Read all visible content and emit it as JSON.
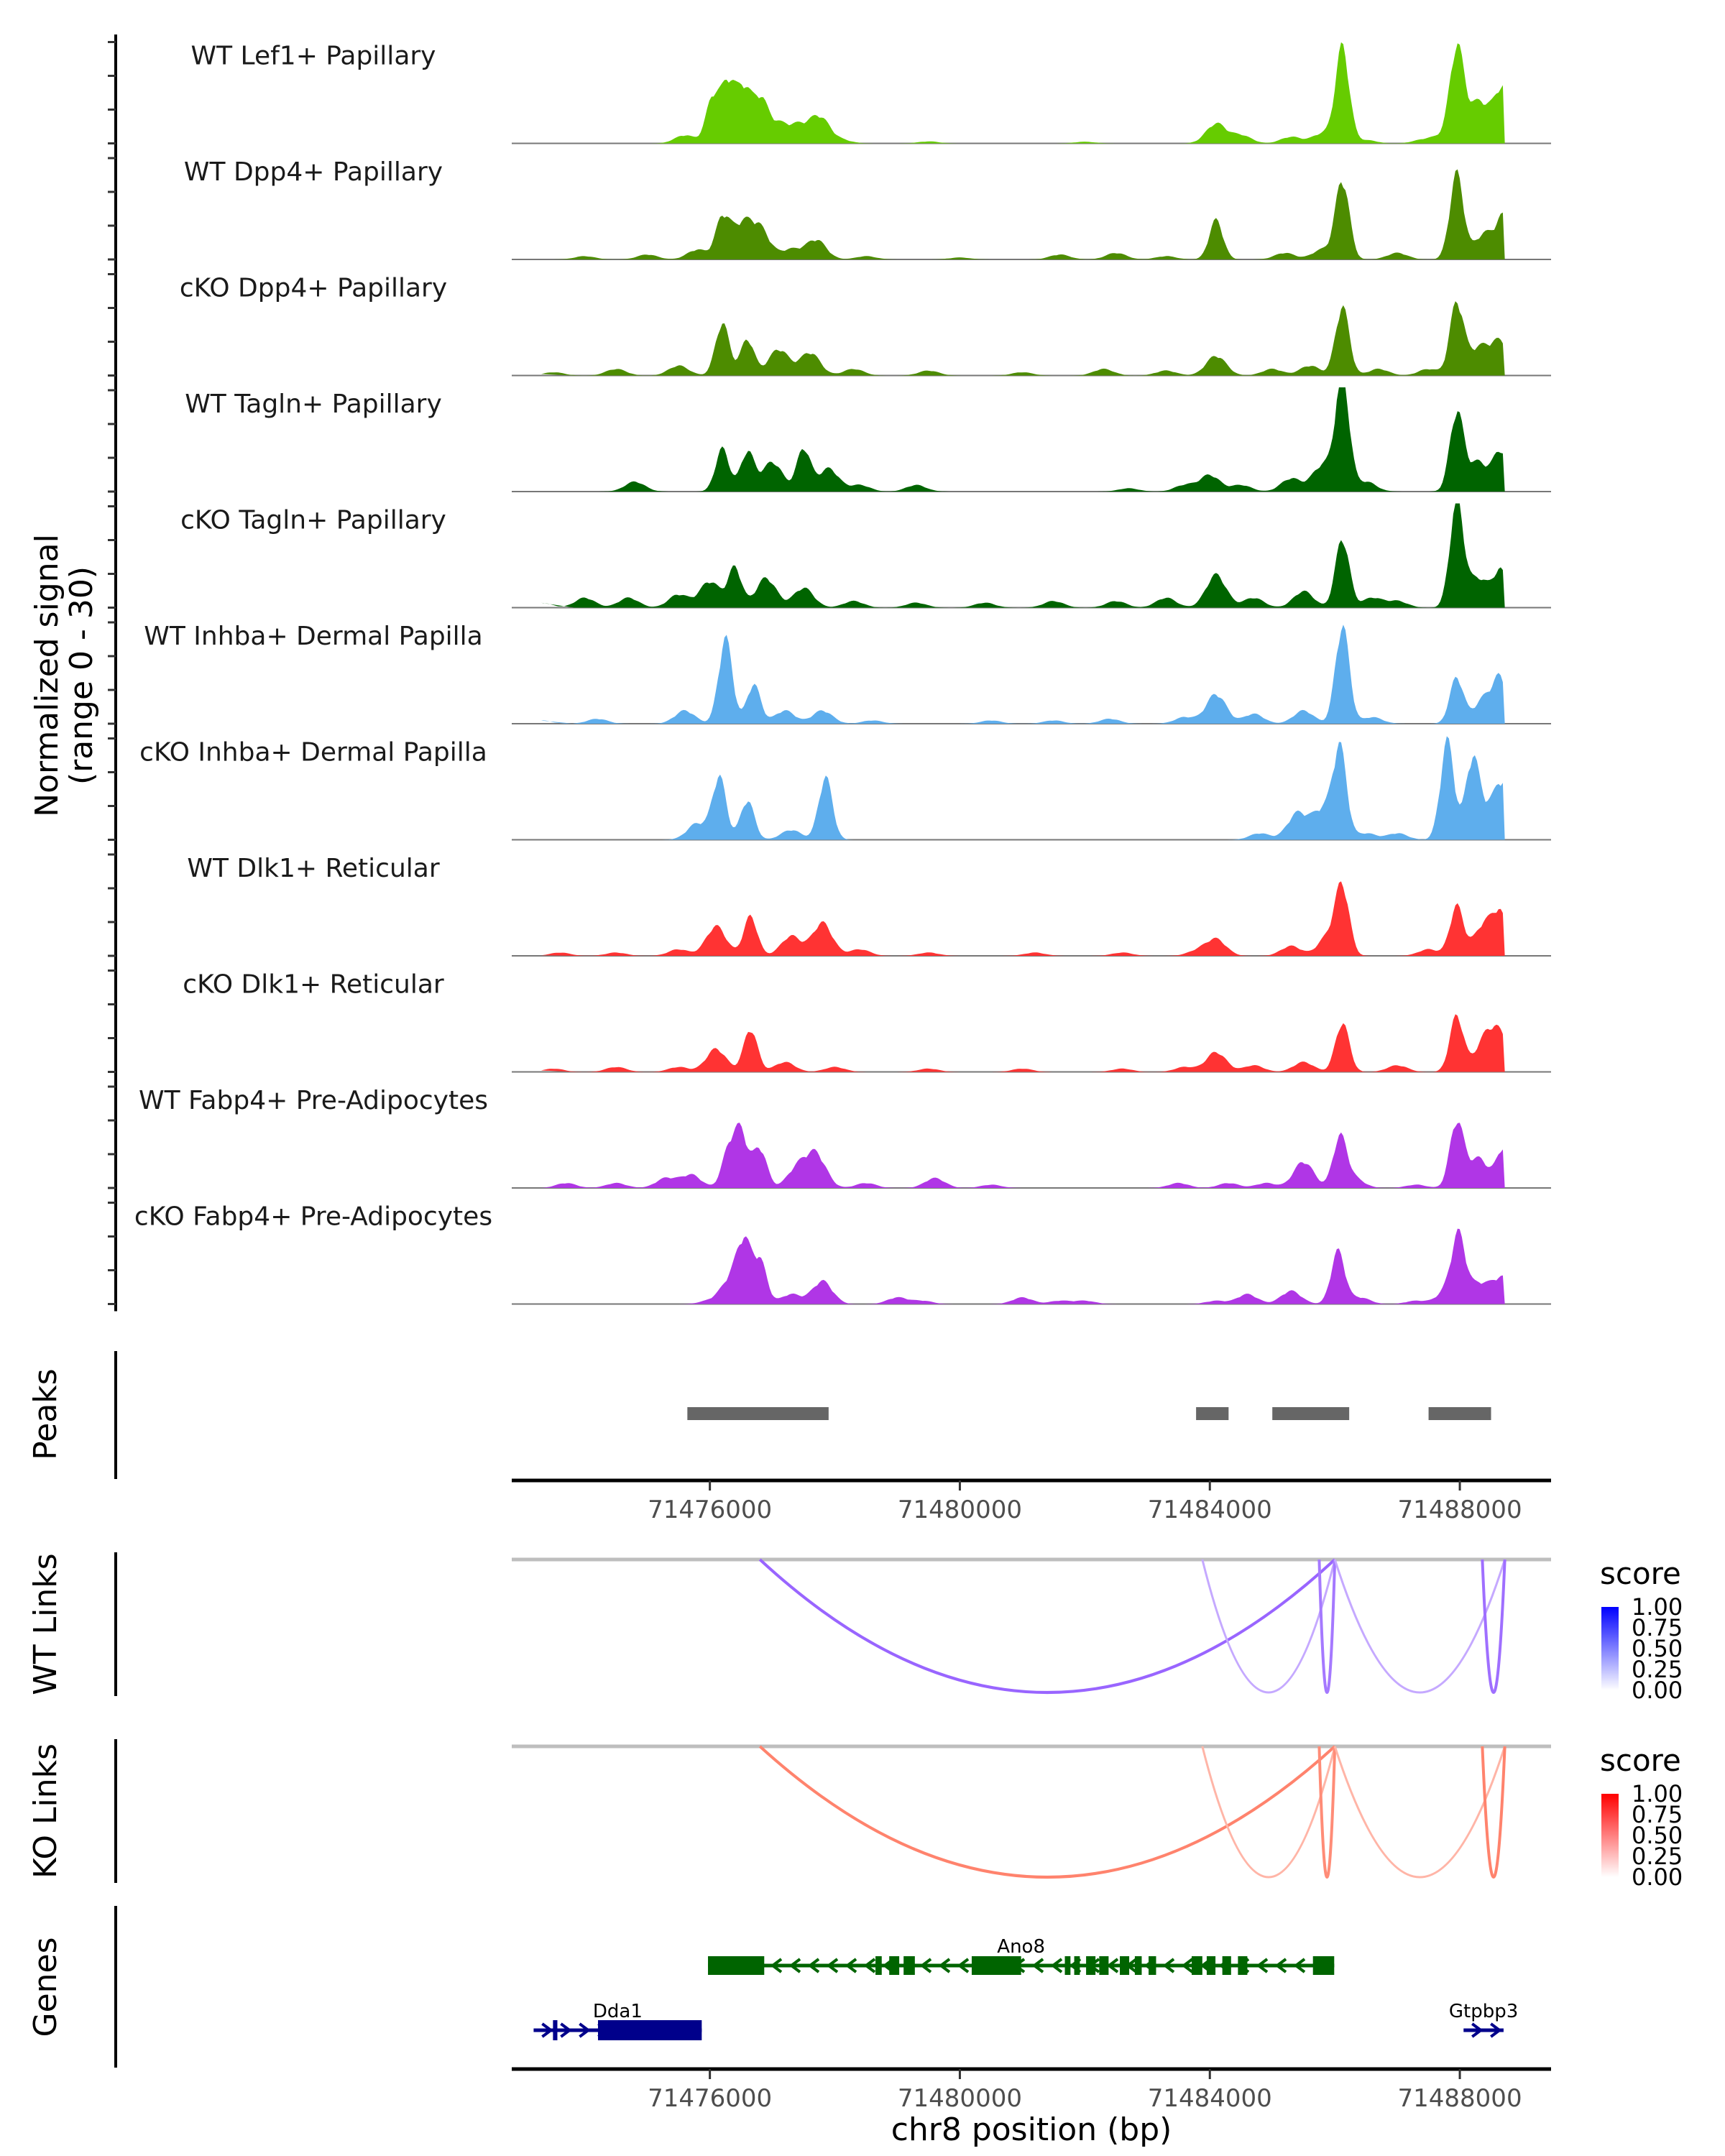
{
  "chart_data": {
    "type": "area",
    "title": "",
    "xlabel": "chr8 position (bp)",
    "ylabel": "Normalized signal\n(range 0 - 30)",
    "ylabel_lines": [
      "Normalized signal",
      "(range 0 - 30)"
    ],
    "xlim": [
      71472830,
      71489460
    ],
    "ylim": [
      0,
      30
    ],
    "x_ticks": [
      71476000,
      71480000,
      71484000,
      71488000
    ],
    "x_tick_labels": [
      "71476000",
      "71480000",
      "71484000",
      "71488000"
    ],
    "coverage_tracks": [
      {
        "name": "WT Lef1+ Papillary",
        "color": "#66cc00",
        "peaks": [
          [
            71475600,
            2.5
          ],
          [
            71476050,
            14
          ],
          [
            71476300,
            18
          ],
          [
            71476550,
            16
          ],
          [
            71476800,
            12
          ],
          [
            71477050,
            6
          ],
          [
            71477400,
            5
          ],
          [
            71477750,
            8
          ],
          [
            71478100,
            1
          ],
          [
            71479500,
            0.6
          ],
          [
            71482000,
            0.5
          ],
          [
            71484100,
            6
          ],
          [
            71484500,
            2.5
          ],
          [
            71485300,
            2
          ],
          [
            71485800,
            3
          ],
          [
            71486120,
            29
          ],
          [
            71486500,
            1
          ],
          [
            71487400,
            1
          ],
          [
            71487700,
            2
          ],
          [
            71487950,
            28
          ],
          [
            71488250,
            10
          ],
          [
            71488500,
            7
          ],
          [
            71488700,
            14
          ]
        ]
      },
      {
        "name": "WT Dpp4+ Papillary",
        "color": "#4d8c00",
        "peaks": [
          [
            71474000,
            1
          ],
          [
            71475000,
            1.5
          ],
          [
            71475800,
            3
          ],
          [
            71476200,
            12
          ],
          [
            71476500,
            10
          ],
          [
            71476800,
            9
          ],
          [
            71477300,
            3
          ],
          [
            71477700,
            6
          ],
          [
            71478500,
            1
          ],
          [
            71480000,
            0.6
          ],
          [
            71481600,
            1.5
          ],
          [
            71482500,
            2
          ],
          [
            71483300,
            1
          ],
          [
            71484100,
            12
          ],
          [
            71485200,
            2
          ],
          [
            71485800,
            3
          ],
          [
            71486120,
            24
          ],
          [
            71487000,
            2
          ],
          [
            71487950,
            26
          ],
          [
            71488400,
            8
          ],
          [
            71488700,
            12
          ]
        ]
      },
      {
        "name": "cKO Dpp4+ Papillary",
        "color": "#4d8c00",
        "peaks": [
          [
            71473500,
            1
          ],
          [
            71474500,
            2
          ],
          [
            71475500,
            3
          ],
          [
            71476200,
            16
          ],
          [
            71476600,
            11
          ],
          [
            71477100,
            8
          ],
          [
            71477600,
            7
          ],
          [
            71478300,
            2
          ],
          [
            71479500,
            1.5
          ],
          [
            71481000,
            1
          ],
          [
            71482300,
            2
          ],
          [
            71483300,
            1.5
          ],
          [
            71484100,
            6
          ],
          [
            71485000,
            2
          ],
          [
            71485600,
            3
          ],
          [
            71486120,
            21
          ],
          [
            71486700,
            2
          ],
          [
            71487500,
            2
          ],
          [
            71487950,
            22
          ],
          [
            71488300,
            8
          ],
          [
            71488650,
            10
          ]
        ]
      },
      {
        "name": "WT Tagln+ Papillary",
        "color": "#006400",
        "peaks": [
          [
            71474800,
            3
          ],
          [
            71476200,
            13
          ],
          [
            71476600,
            12
          ],
          [
            71477000,
            9
          ],
          [
            71477500,
            13
          ],
          [
            71477900,
            7
          ],
          [
            71478400,
            2
          ],
          [
            71479300,
            2
          ],
          [
            71482700,
            1
          ],
          [
            71483600,
            2
          ],
          [
            71484000,
            5
          ],
          [
            71484500,
            2
          ],
          [
            71485300,
            4
          ],
          [
            71485800,
            8
          ],
          [
            71486120,
            35
          ],
          [
            71486500,
            3
          ],
          [
            71487950,
            24
          ],
          [
            71488300,
            9
          ],
          [
            71488650,
            12
          ]
        ]
      },
      {
        "name": "cKO Tagln+ Papillary",
        "color": "#006400",
        "peaks": [
          [
            71473300,
            1.5
          ],
          [
            71474000,
            3
          ],
          [
            71474700,
            3
          ],
          [
            71475500,
            4
          ],
          [
            71476000,
            8
          ],
          [
            71476400,
            12
          ],
          [
            71476900,
            9
          ],
          [
            71477500,
            6
          ],
          [
            71478300,
            2
          ],
          [
            71479300,
            1.5
          ],
          [
            71480400,
            1.5
          ],
          [
            71481500,
            2
          ],
          [
            71482500,
            2
          ],
          [
            71483300,
            3
          ],
          [
            71484100,
            10
          ],
          [
            71484700,
            3
          ],
          [
            71485500,
            5
          ],
          [
            71486120,
            21
          ],
          [
            71486600,
            3
          ],
          [
            71487000,
            2
          ],
          [
            71487950,
            32
          ],
          [
            71488300,
            9
          ],
          [
            71488650,
            11
          ]
        ]
      },
      {
        "name": "WT Inhba+ Dermal Papilla",
        "color": "#5eaeed",
        "peaks": [
          [
            71473300,
            1
          ],
          [
            71474200,
            1.5
          ],
          [
            71475600,
            4
          ],
          [
            71476250,
            26
          ],
          [
            71476700,
            12
          ],
          [
            71477200,
            4
          ],
          [
            71477800,
            4
          ],
          [
            71478600,
            1
          ],
          [
            71480500,
            1
          ],
          [
            71481500,
            1
          ],
          [
            71482400,
            1.5
          ],
          [
            71483600,
            2
          ],
          [
            71484100,
            9
          ],
          [
            71484700,
            3
          ],
          [
            71485500,
            4
          ],
          [
            71486120,
            30
          ],
          [
            71486600,
            2
          ],
          [
            71487950,
            14
          ],
          [
            71488400,
            8
          ],
          [
            71488650,
            12
          ]
        ]
      },
      {
        "name": "cKO Inhba+ Dermal Papilla",
        "color": "#5eaeed",
        "peaks": [
          [
            71475800,
            5
          ],
          [
            71476150,
            19
          ],
          [
            71476600,
            12
          ],
          [
            71477300,
            3
          ],
          [
            71477850,
            19
          ],
          [
            71484800,
            2
          ],
          [
            71485400,
            8
          ],
          [
            71485800,
            9
          ],
          [
            71486080,
            27
          ],
          [
            71486500,
            2
          ],
          [
            71487000,
            2
          ],
          [
            71487800,
            30
          ],
          [
            71488200,
            24
          ],
          [
            71488500,
            10
          ],
          [
            71488700,
            13
          ]
        ]
      },
      {
        "name": "WT Dlk1+ Reticular",
        "color": "#ff3333",
        "peaks": [
          [
            71473600,
            1
          ],
          [
            71474500,
            1
          ],
          [
            71475500,
            2
          ],
          [
            71476100,
            9
          ],
          [
            71476650,
            12
          ],
          [
            71477300,
            6
          ],
          [
            71477800,
            10
          ],
          [
            71478400,
            2
          ],
          [
            71479500,
            1
          ],
          [
            71481200,
            1
          ],
          [
            71482600,
            1
          ],
          [
            71483800,
            1.5
          ],
          [
            71484100,
            5
          ],
          [
            71485300,
            3
          ],
          [
            71485900,
            6
          ],
          [
            71486120,
            20
          ],
          [
            71487500,
            2
          ],
          [
            71487950,
            15
          ],
          [
            71488400,
            10
          ],
          [
            71488650,
            11
          ]
        ]
      },
      {
        "name": "cKO Dlk1+ Reticular",
        "color": "#ff3333",
        "peaks": [
          [
            71473500,
            1
          ],
          [
            71474500,
            1.5
          ],
          [
            71475500,
            1.5
          ],
          [
            71476100,
            7
          ],
          [
            71476650,
            13
          ],
          [
            71477200,
            3
          ],
          [
            71478000,
            1.5
          ],
          [
            71479500,
            1
          ],
          [
            71481000,
            1
          ],
          [
            71482600,
            1
          ],
          [
            71483600,
            1.5
          ],
          [
            71484100,
            6
          ],
          [
            71484700,
            2
          ],
          [
            71485500,
            3
          ],
          [
            71486120,
            15
          ],
          [
            71487000,
            2
          ],
          [
            71487950,
            17
          ],
          [
            71488400,
            9
          ],
          [
            71488650,
            10
          ]
        ]
      },
      {
        "name": "WT Fabp4+ Pre-Adipocytes",
        "color": "#b036e6",
        "peaks": [
          [
            71473700,
            1.5
          ],
          [
            71474500,
            1.5
          ],
          [
            71475300,
            3
          ],
          [
            71475700,
            4
          ],
          [
            71476300,
            11
          ],
          [
            71476500,
            16
          ],
          [
            71476800,
            12
          ],
          [
            71477400,
            6
          ],
          [
            71477700,
            10
          ],
          [
            71478500,
            1.5
          ],
          [
            71479600,
            3
          ],
          [
            71480500,
            1
          ],
          [
            71483500,
            1.5
          ],
          [
            71484300,
            1.5
          ],
          [
            71484900,
            1.5
          ],
          [
            71485500,
            8
          ],
          [
            71486080,
            15
          ],
          [
            71486300,
            3
          ],
          [
            71487300,
            1
          ],
          [
            71487950,
            20
          ],
          [
            71488300,
            9
          ],
          [
            71488700,
            12
          ]
        ]
      },
      {
        "name": "cKO Fabp4+ Pre-Adipocytes",
        "color": "#b036e6",
        "peaks": [
          [
            71476000,
            1
          ],
          [
            71476350,
            8
          ],
          [
            71476550,
            16
          ],
          [
            71476800,
            13
          ],
          [
            71477300,
            3
          ],
          [
            71477800,
            7
          ],
          [
            71479000,
            2
          ],
          [
            71479400,
            1
          ],
          [
            71481000,
            2
          ],
          [
            71481600,
            1
          ],
          [
            71482000,
            1
          ],
          [
            71484100,
            1
          ],
          [
            71484600,
            3
          ],
          [
            71485300,
            4
          ],
          [
            71486050,
            16
          ],
          [
            71486400,
            2
          ],
          [
            71487300,
            1
          ],
          [
            71487800,
            4
          ],
          [
            71487980,
            19
          ],
          [
            71488300,
            6
          ],
          [
            71488680,
            8
          ]
        ]
      }
    ],
    "peaks_track": {
      "label": "Peaks",
      "color": "#666666",
      "regions": [
        [
          71475640,
          71477900
        ],
        [
          71483780,
          71484300
        ],
        [
          71485000,
          71486230
        ],
        [
          71487500,
          71488500
        ]
      ]
    },
    "links": [
      {
        "label": "WT Links",
        "legend_title": "score",
        "high_color": "#0000ff",
        "low_color": "#ffffff",
        "legend_ticks": [
          "1.00",
          "0.75",
          "0.50",
          "0.25",
          "0.00"
        ],
        "arcs": [
          {
            "start": 71476800,
            "end": 71486000,
            "score": 0.55
          },
          {
            "start": 71483880,
            "end": 71486000,
            "score": 0.2
          },
          {
            "start": 71485750,
            "end": 71486000,
            "score": 0.45
          },
          {
            "start": 71486000,
            "end": 71488720,
            "score": 0.2
          },
          {
            "start": 71488360,
            "end": 71488720,
            "score": 0.5
          }
        ]
      },
      {
        "label": "KO Links",
        "legend_title": "score",
        "high_color": "#ff0000",
        "low_color": "#ffffff",
        "legend_ticks": [
          "1.00",
          "0.75",
          "0.50",
          "0.25",
          "0.00"
        ],
        "arcs": [
          {
            "start": 71476800,
            "end": 71486000,
            "score": 0.5
          },
          {
            "start": 71483880,
            "end": 71486000,
            "score": 0.2
          },
          {
            "start": 71485750,
            "end": 71486000,
            "score": 0.45
          },
          {
            "start": 71486000,
            "end": 71488720,
            "score": 0.2
          },
          {
            "start": 71488360,
            "end": 71488720,
            "score": 0.5
          }
        ]
      }
    ],
    "genes": {
      "label": "Genes",
      "items": [
        {
          "name": "Ano8",
          "strand": "-",
          "color": "#006400",
          "row": 0,
          "start": 71475970,
          "end": 71485990,
          "exons": [
            [
              71475970,
              71476870
            ],
            [
              71478650,
              71478750
            ],
            [
              71478870,
              71479030
            ],
            [
              71479100,
              71479280
            ],
            [
              71480190,
              71480980
            ],
            [
              71481680,
              71481770
            ],
            [
              71481830,
              71481920
            ],
            [
              71482020,
              71482170
            ],
            [
              71482230,
              71482380
            ],
            [
              71482560,
              71482710
            ],
            [
              71482800,
              71482910
            ],
            [
              71483020,
              71483140
            ],
            [
              71483710,
              71483880
            ],
            [
              71483950,
              71484090
            ],
            [
              71484200,
              71484340
            ],
            [
              71484450,
              71484600
            ],
            [
              71485650,
              71485990
            ]
          ]
        },
        {
          "name": "Dda1",
          "strand": "+",
          "color": "#00008b",
          "row": 1,
          "start": 71473180,
          "end": 71475870,
          "exons": [
            [
              71473490,
              71473560
            ],
            [
              71474210,
              71475870
            ]
          ]
        },
        {
          "name": "Gtpbp3",
          "strand": "+",
          "color": "#00008b",
          "row": 1,
          "start": 71488060,
          "end": 71488700,
          "exons": []
        }
      ]
    }
  }
}
